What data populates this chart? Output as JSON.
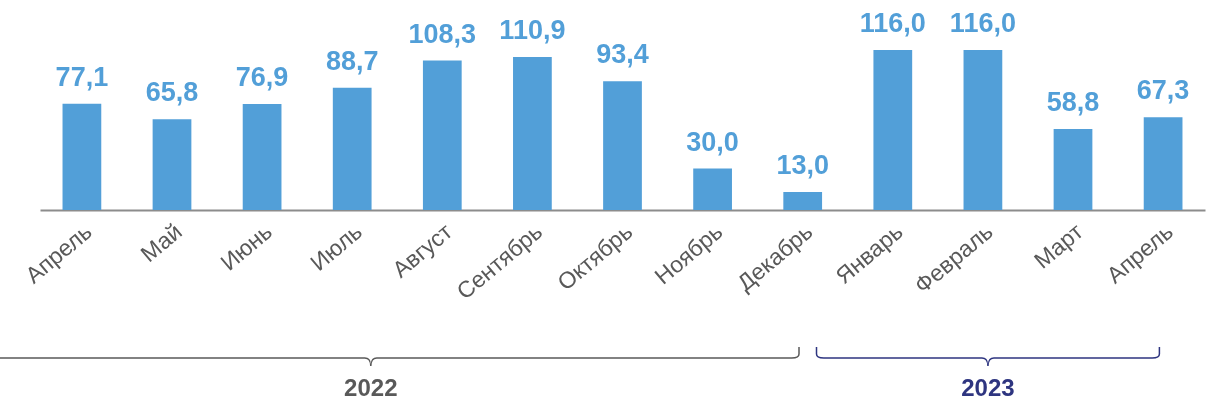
{
  "chart_data": {
    "type": "bar",
    "categories": [
      "Апрель",
      "Май",
      "Июнь",
      "Июль",
      "Август",
      "Сентябрь",
      "Октябрь",
      "Ноябрь",
      "Декабрь",
      "Январь",
      "Февраль",
      "Март",
      "Апрель"
    ],
    "values": [
      77.1,
      65.8,
      76.9,
      88.7,
      108.3,
      110.9,
      93.4,
      30.0,
      13.0,
      116.0,
      116.0,
      58.8,
      67.3
    ],
    "value_labels": [
      "77,1",
      "65,8",
      "76,9",
      "88,7",
      "108,3",
      "110,9",
      "93,4",
      "30,0",
      "13,0",
      "116,0",
      "116,0",
      "58,8",
      "67,3"
    ],
    "color": "#529fd8",
    "tick_labels": "x",
    "annotations": [
      "2022",
      "2023"
    ]
  }
}
